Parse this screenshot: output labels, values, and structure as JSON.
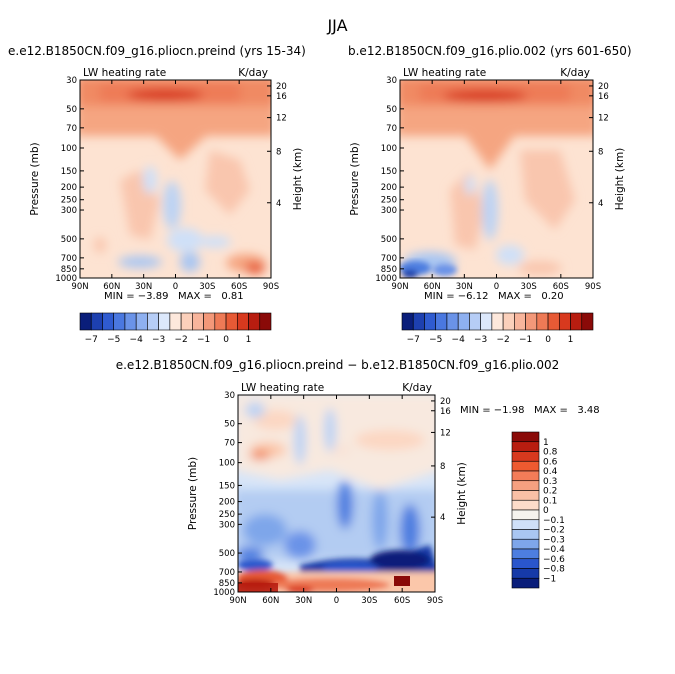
{
  "page_title": "JJA",
  "chart_data": [
    {
      "type": "heatmap",
      "title": "e.e12.B1850CN.f09_g16.pliocn.preind (yrs 15-34)",
      "left_label": "LW heating rate",
      "right_label": "K/day",
      "ylabel": "Pressure (mb)",
      "y2label": "Height (km)",
      "x_ticks": [
        "90N",
        "60N",
        "30N",
        "0",
        "30S",
        "60S",
        "90S"
      ],
      "y_ticks": [
        "30",
        "50",
        "70",
        "100",
        "150",
        "200",
        "250",
        "300",
        "500",
        "700",
        "850",
        "1000"
      ],
      "y2_ticks": [
        "20",
        "16",
        "12",
        "8",
        "4"
      ],
      "stats": "MIN = −3.89   MAX =   0.81"
    },
    {
      "type": "heatmap",
      "title": "b.e12.B1850CN.f09_g16.plio.002 (yrs 601-650)",
      "left_label": "LW heating rate",
      "right_label": "K/day",
      "ylabel": "Pressure (mb)",
      "y2label": "Height (km)",
      "x_ticks": [
        "90N",
        "60N",
        "30N",
        "0",
        "30S",
        "60S",
        "90S"
      ],
      "y_ticks": [
        "30",
        "50",
        "70",
        "100",
        "150",
        "200",
        "250",
        "300",
        "500",
        "700",
        "850",
        "1000"
      ],
      "y2_ticks": [
        "20",
        "16",
        "12",
        "8",
        "4"
      ],
      "stats": "MIN = −6.12   MAX =   0.20"
    },
    {
      "type": "heatmap",
      "title": "e.e12.B1850CN.f09_g16.pliocn.preind − b.e12.B1850CN.f09_g16.plio.002",
      "left_label": "LW heating rate",
      "right_label": "K/day",
      "ylabel": "Pressure (mb)",
      "y2label": "Height (km)",
      "x_ticks": [
        "90N",
        "60N",
        "30N",
        "0",
        "30S",
        "60S",
        "90S"
      ],
      "y_ticks": [
        "30",
        "50",
        "70",
        "100",
        "150",
        "200",
        "250",
        "300",
        "500",
        "700",
        "850",
        "1000"
      ],
      "y2_ticks": [
        "20",
        "16",
        "12",
        "8",
        "4"
      ],
      "stats": "MIN = −1.98   MAX =   3.48"
    }
  ],
  "colorbar_top": {
    "labels": [
      "−7",
      "−5",
      "−4",
      "−3",
      "−2",
      "−1",
      "0",
      "1"
    ],
    "colors": [
      "#0a1e7a",
      "#1d40b0",
      "#2f5bd0",
      "#4a78e0",
      "#6a93e8",
      "#8eb0f0",
      "#b6cdf6",
      "#dce8fb",
      "#fde8dc",
      "#fbd0bb",
      "#f8b59c",
      "#f39879",
      "#ee7a56",
      "#e75a35",
      "#d8391e",
      "#b81d10",
      "#8a0a08"
    ]
  },
  "colorbar_diff": {
    "labels": [
      "1",
      "0.8",
      "0.6",
      "0.4",
      "0.3",
      "0.2",
      "0.1",
      "0",
      "−0.1",
      "−0.2",
      "−0.3",
      "−0.4",
      "−0.6",
      "−0.8",
      "−1"
    ],
    "colors": [
      "#8a0a08",
      "#b81d10",
      "#d8391e",
      "#ee5a30",
      "#f37c58",
      "#f6a080",
      "#f9c0a6",
      "#fcdcca",
      "#f5f3ee",
      "#cfe0f8",
      "#a9c6f2",
      "#7ea6ea",
      "#4d7ee0",
      "#2a56cc",
      "#163aa8",
      "#0a1e7a"
    ]
  }
}
